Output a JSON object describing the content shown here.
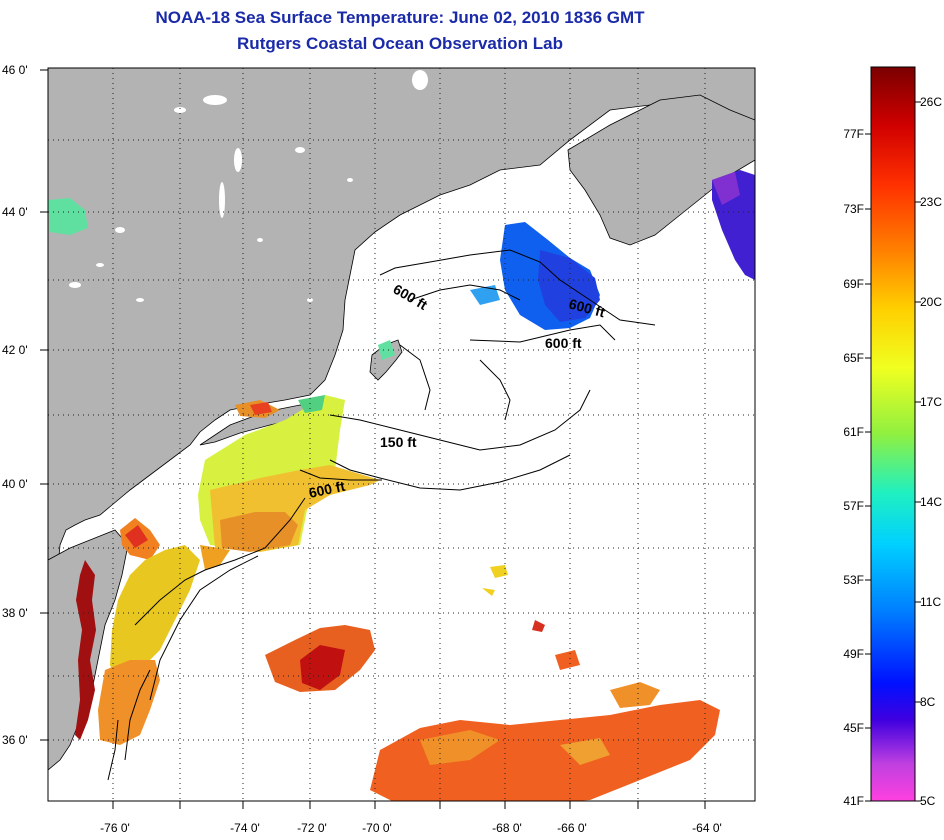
{
  "title": "NOAA-18 Sea Surface Temperature:  June 02, 2010 1836 GMT",
  "subtitle": "Rutgers Coastal Ocean Observation Lab",
  "map": {
    "lat_labels": [
      "46 0'",
      "44 0'",
      "42 0'",
      "40 0'",
      "38 0'",
      "36 0'"
    ],
    "lon_labels": [
      "-76 0'",
      "-74 0'",
      "-72 0'",
      "-70 0'",
      "-68 0'",
      "-66 0'",
      "-64 0'"
    ],
    "contour_labels": [
      "600 ft",
      "600 ft",
      "600 ft",
      "150 ft",
      "600 ft"
    ],
    "colors": {
      "land": "#b3b3b3",
      "water": "#ffffff"
    }
  },
  "colorbar": {
    "fahrenheit": [
      "77F",
      "73F",
      "69F",
      "65F",
      "61F",
      "57F",
      "53F",
      "49F",
      "45F",
      "41F"
    ],
    "celsius": [
      "26C",
      "23C",
      "20C",
      "17C",
      "14C",
      "11C",
      "8C",
      "5C"
    ],
    "gradient": [
      "#7a0000",
      "#d00000",
      "#ff3000",
      "#ff8000",
      "#ffd000",
      "#f0ff20",
      "#90f040",
      "#20f0c0",
      "#00d0ff",
      "#0080ff",
      "#0010ff",
      "#4000e0",
      "#c040e0",
      "#ff40e0"
    ]
  }
}
